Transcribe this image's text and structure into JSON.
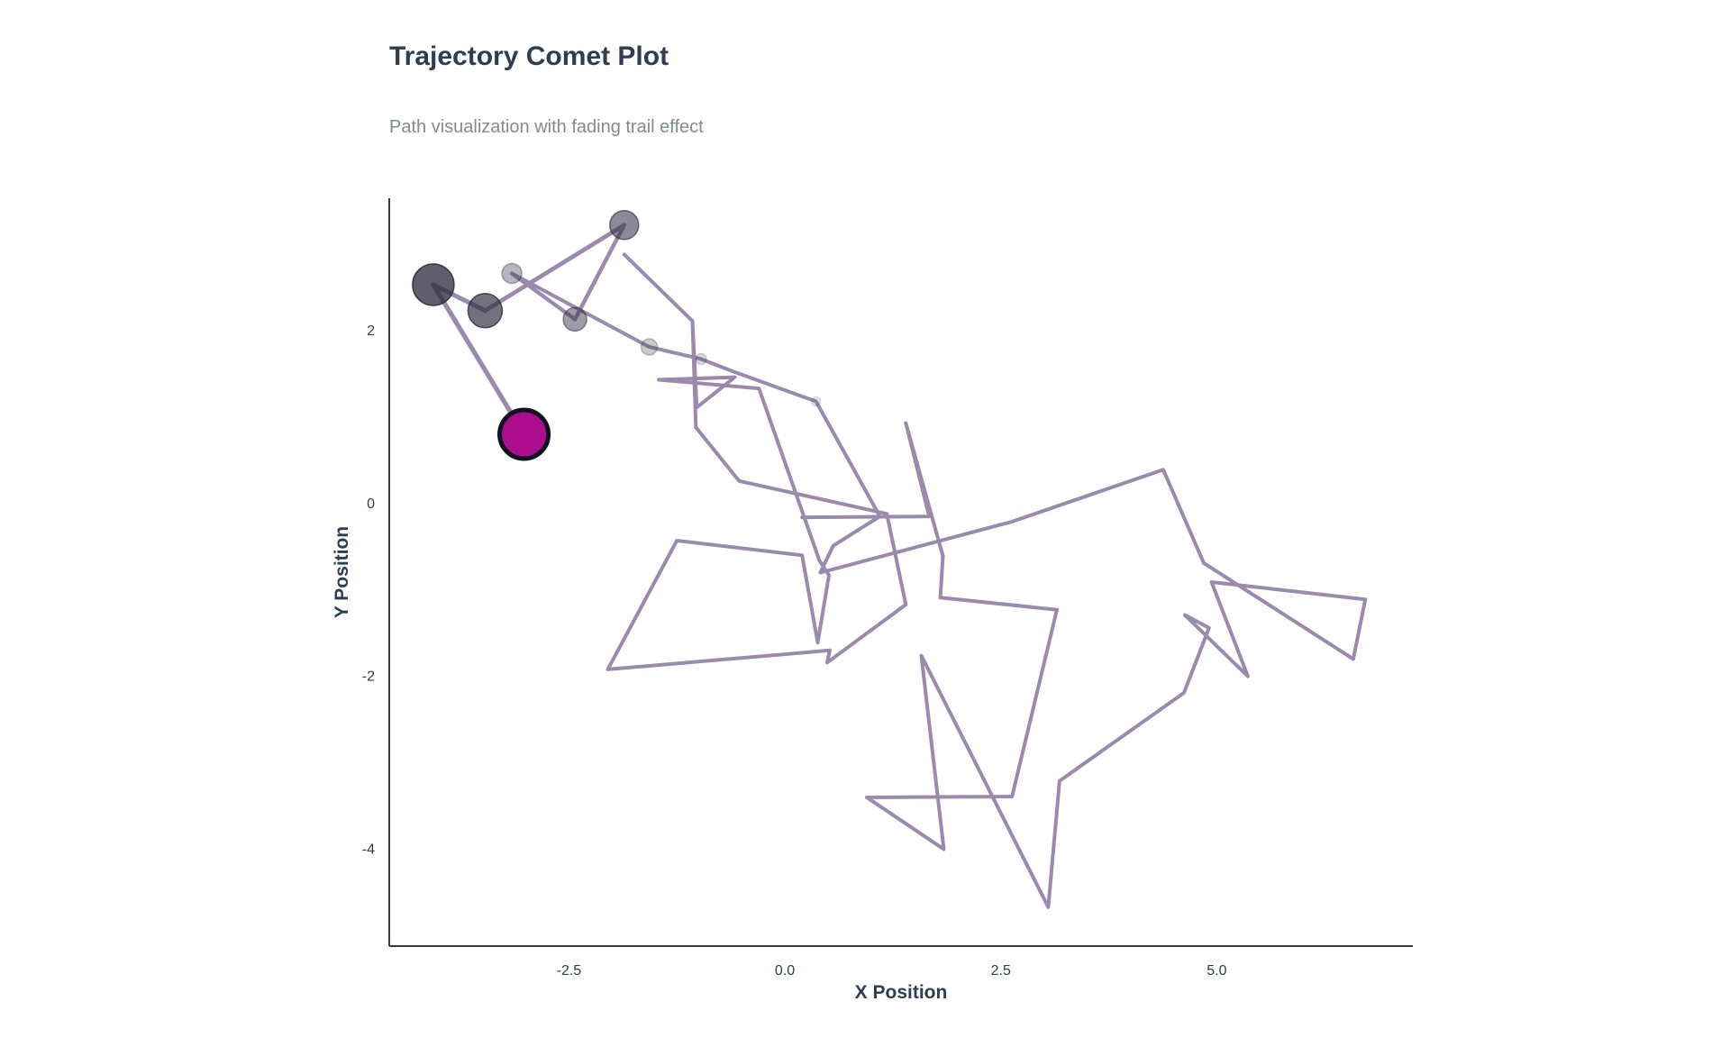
{
  "chart_data": {
    "type": "line",
    "title": "Trajectory Comet Plot",
    "subtitle": "Path visualization with fading trail effect",
    "xlabel": "X Position",
    "ylabel": "Y Position",
    "xlim": [
      -4.58,
      7.27
    ],
    "ylim": [
      -5.13,
      3.52
    ],
    "x_ticks": [
      -2.5,
      0.0,
      2.5,
      5.0
    ],
    "x_tick_labels": [
      "-2.5",
      "0.0",
      "2.5",
      "5.0"
    ],
    "y_ticks": [
      -4,
      -2,
      0,
      2
    ],
    "y_tick_labels": [
      "-4",
      "-2",
      "0",
      "2"
    ],
    "grid": false,
    "colors": {
      "path": "#9b8aab",
      "head": "#ad0e8f",
      "head_edge": "#111122",
      "trail": "#2f2d40",
      "axis": "#2c3e50"
    },
    "series": [
      {
        "points": [
          [
            0.2,
            -0.17
          ],
          [
            1.67,
            -0.16
          ],
          [
            1.4,
            0.92
          ],
          [
            1.83,
            -0.62
          ],
          [
            1.8,
            -1.1
          ],
          [
            3.15,
            -1.24
          ],
          [
            2.63,
            -3.4
          ],
          [
            0.95,
            -3.41
          ],
          [
            1.84,
            -4.01
          ],
          [
            1.58,
            -1.77
          ],
          [
            3.05,
            -4.68
          ],
          [
            3.18,
            -3.22
          ],
          [
            4.62,
            -2.2
          ],
          [
            4.91,
            -1.45
          ],
          [
            4.63,
            -1.3
          ],
          [
            5.36,
            -2.01
          ],
          [
            4.94,
            -0.92
          ],
          [
            6.72,
            -1.12
          ],
          [
            6.58,
            -1.81
          ],
          [
            4.85,
            -0.7
          ],
          [
            4.38,
            0.38
          ],
          [
            2.63,
            -0.22
          ],
          [
            0.41,
            -0.81
          ],
          [
            0.56,
            -0.5
          ],
          [
            1.1,
            -0.16
          ],
          [
            0.36,
            1.17
          ],
          [
            -0.61,
            1.52
          ],
          [
            -0.97,
            1.66
          ],
          [
            -1.57,
            1.8
          ],
          [
            -3.16,
            2.65
          ],
          [
            -2.43,
            2.12
          ],
          [
            -1.86,
            3.21
          ],
          [
            -3.47,
            2.22
          ],
          [
            -4.07,
            2.52
          ],
          [
            -3.02,
            0.79
          ]
        ],
        "extra_segments": [
          [
            [
              -1.86,
              2.87
            ],
            [
              -1.07,
              2.1
            ],
            [
              -1.02,
              1.1
            ],
            [
              -0.58,
              1.45
            ],
            [
              -1.46,
              1.42
            ],
            [
              -0.3,
              1.32
            ],
            [
              0.4,
              -0.67
            ],
            [
              0.51,
              -0.84
            ],
            [
              0.38,
              -1.62
            ],
            [
              0.2,
              -0.61
            ],
            [
              -1.25,
              -0.44
            ],
            [
              -2.05,
              -1.93
            ],
            [
              0.52,
              -1.71
            ],
            [
              0.49,
              -1.85
            ],
            [
              1.4,
              -1.18
            ],
            [
              1.18,
              -0.13
            ],
            [
              -0.53,
              0.25
            ],
            [
              -1.03,
              0.87
            ],
            [
              -1.07,
              2.1
            ]
          ]
        ]
      }
    ],
    "markers": [
      {
        "x": 0.36,
        "y": 1.17,
        "size": 5,
        "opacity": 0.15
      },
      {
        "x": -0.97,
        "y": 1.66,
        "size": 6,
        "opacity": 0.2
      },
      {
        "x": -1.57,
        "y": 1.8,
        "size": 9,
        "opacity": 0.3
      },
      {
        "x": -3.16,
        "y": 2.65,
        "size": 11,
        "opacity": 0.4
      },
      {
        "x": -2.43,
        "y": 2.12,
        "size": 13,
        "opacity": 0.55
      },
      {
        "x": -1.86,
        "y": 3.21,
        "size": 16,
        "opacity": 0.65
      },
      {
        "x": -3.47,
        "y": 2.22,
        "size": 19,
        "opacity": 0.8
      },
      {
        "x": -4.07,
        "y": 2.52,
        "size": 23,
        "opacity": 0.9
      },
      {
        "x": -3.02,
        "y": 0.79,
        "size": 27,
        "opacity": 1.0,
        "head": true
      }
    ]
  }
}
